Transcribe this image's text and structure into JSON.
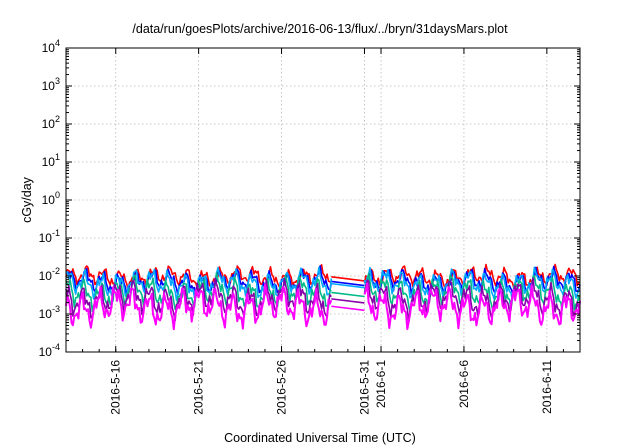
{
  "chart_data": {
    "type": "line",
    "title": "/data/run/goesPlots/archive/2016-06-13/flux/../bryn/31daysMars.plot",
    "xlabel": "Coordinated Universal Time (UTC)",
    "ylabel": "cGy/day",
    "yscale": "log",
    "ylim": [
      0.0001,
      10000
    ],
    "xlim": [
      "2016-05-13",
      "2016-06-13"
    ],
    "grid": true,
    "x_ticks": [
      "2016-5-16",
      "2016-5-21",
      "2016-5-26",
      "2016-5-31",
      "2016-6-1",
      "2016-6-6",
      "2016-6-11"
    ],
    "y_ticks": [
      {
        "base": "10",
        "exp": "-4"
      },
      {
        "base": "10",
        "exp": "-3"
      },
      {
        "base": "10",
        "exp": "-2"
      },
      {
        "base": "10",
        "exp": "-1"
      },
      {
        "base": "10",
        "exp": "0"
      },
      {
        "base": "10",
        "exp": "1"
      },
      {
        "base": "10",
        "exp": "2"
      },
      {
        "base": "10",
        "exp": "3"
      },
      {
        "base": "10",
        "exp": "4"
      }
    ],
    "gap": [
      "2016-05-29",
      "2016-05-31"
    ],
    "series": [
      {
        "color": "#ff0000",
        "level": 0.0095
      },
      {
        "color": "#0000ff",
        "level": 0.0072
      },
      {
        "color": "#00aaff",
        "level": 0.0063
      },
      {
        "color": "#00bb88",
        "level": 0.0037
      },
      {
        "color": "#8800aa",
        "level": 0.0025
      },
      {
        "color": "#ff00ff",
        "level": 0.0016
      }
    ]
  }
}
